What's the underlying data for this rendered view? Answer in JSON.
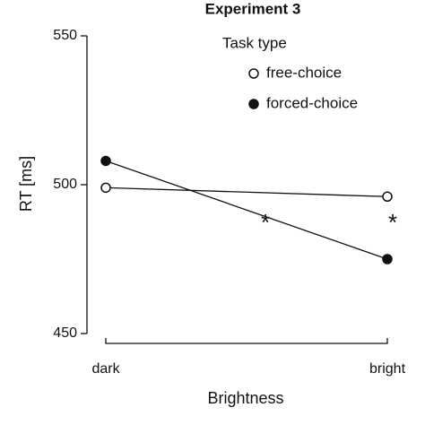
{
  "chart_data": {
    "type": "line",
    "title": "Experiment 3",
    "x_label": "Brightness",
    "y_label": "RT [ms]",
    "categories": [
      "dark",
      "bright"
    ],
    "legend_title": "Task type",
    "series": [
      {
        "name": "free-choice",
        "color": "#111111",
        "marker_fill": "#ffffff",
        "values": [
          499,
          496
        ]
      },
      {
        "name": "forced-choice",
        "color": "#111111",
        "marker_fill": "#111111",
        "values": [
          508,
          475
        ]
      }
    ],
    "ylim": [
      450,
      550
    ],
    "yticks": [
      450,
      500,
      550
    ],
    "annotations": [
      "*",
      "*"
    ]
  }
}
